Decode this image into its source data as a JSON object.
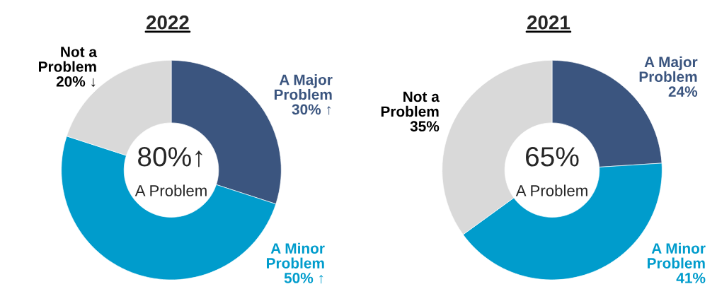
{
  "chart_data": [
    {
      "type": "donut",
      "title": "2022",
      "categories": [
        "A Major Problem",
        "A Minor Problem",
        "Not a Problem"
      ],
      "values": [
        30,
        50,
        20
      ],
      "colors": [
        "#3b557f",
        "#009ccc",
        "#d9d9d9"
      ],
      "value_labels": [
        "30% ↑",
        "50% ↑",
        "20% ↓"
      ],
      "annotations": [
        "80%↑",
        "A Problem"
      ],
      "legend": false
    },
    {
      "type": "donut",
      "title": "2021",
      "categories": [
        "A Major Problem",
        "A Minor Problem",
        "Not a Problem"
      ],
      "values": [
        24,
        41,
        35
      ],
      "colors": [
        "#3b557f",
        "#009ccc",
        "#d9d9d9"
      ],
      "value_labels": [
        "24%",
        "41%",
        "35%"
      ],
      "annotations": [
        "65%",
        "A Problem"
      ],
      "legend": false
    }
  ]
}
